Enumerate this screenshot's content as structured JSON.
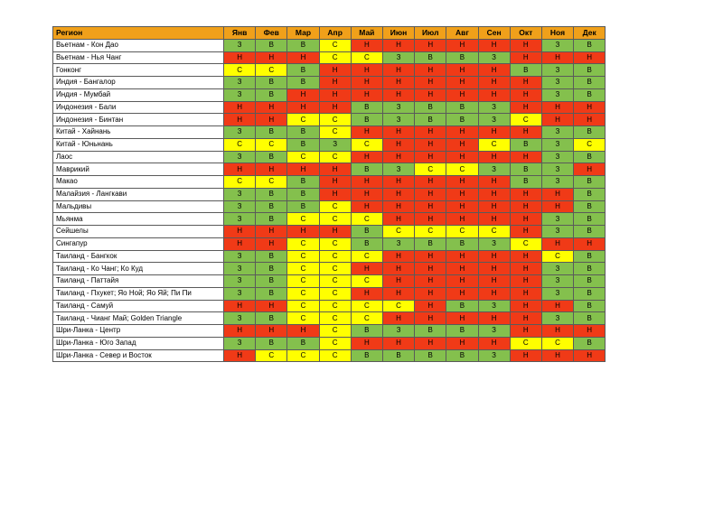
{
  "header": {
    "region": "Регион",
    "months": [
      "Янв",
      "Фев",
      "Мар",
      "Апр",
      "Май",
      "Июн",
      "Июл",
      "Авг",
      "Сен",
      "Окт",
      "Ноя",
      "Дек"
    ]
  },
  "colors": {
    "Н": "#f03a17",
    "З": "#84c04d",
    "В": "#84c04d",
    "С": "#ffff00",
    "header": "#f0a01a"
  },
  "rows": [
    {
      "region": "Вьетнам - Кон Дао",
      "values": [
        "З",
        "В",
        "В",
        "С",
        "Н",
        "Н",
        "Н",
        "Н",
        "Н",
        "Н",
        "З",
        "В"
      ]
    },
    {
      "region": "Вьетнам - Нья Чанг",
      "values": [
        "Н",
        "Н",
        "Н",
        "С",
        "С",
        "З",
        "В",
        "В",
        "З",
        "Н",
        "Н",
        "Н"
      ]
    },
    {
      "region": "Гонконг",
      "values": [
        "С",
        "С",
        "В",
        "Н",
        "Н",
        "Н",
        "Н",
        "Н",
        "Н",
        "В",
        "З",
        "В"
      ]
    },
    {
      "region": "Индия - Бангалор",
      "values": [
        "З",
        "В",
        "В",
        "Н",
        "Н",
        "Н",
        "Н",
        "Н",
        "Н",
        "Н",
        "З",
        "В"
      ]
    },
    {
      "region": "Индия - Мумбай",
      "values": [
        "З",
        "В",
        "Н",
        "Н",
        "Н",
        "Н",
        "Н",
        "Н",
        "Н",
        "Н",
        "З",
        "В"
      ]
    },
    {
      "region": "Индонезия - Бали",
      "values": [
        "Н",
        "Н",
        "Н",
        "Н",
        "В",
        "З",
        "В",
        "В",
        "З",
        "Н",
        "Н",
        "Н"
      ]
    },
    {
      "region": "Индонезия - Бинтан",
      "values": [
        "Н",
        "Н",
        "С",
        "С",
        "В",
        "З",
        "В",
        "В",
        "З",
        "С",
        "Н",
        "Н"
      ]
    },
    {
      "region": "Китай - Хайнань",
      "values": [
        "З",
        "В",
        "В",
        "С",
        "Н",
        "Н",
        "Н",
        "Н",
        "Н",
        "Н",
        "З",
        "В"
      ]
    },
    {
      "region": "Китай - Юньнань",
      "values": [
        "С",
        "С",
        "В",
        "З",
        "С",
        "Н",
        "Н",
        "Н",
        "С",
        "В",
        "З",
        "С"
      ]
    },
    {
      "region": "Лаос",
      "values": [
        "З",
        "В",
        "С",
        "С",
        "Н",
        "Н",
        "Н",
        "Н",
        "Н",
        "Н",
        "З",
        "В"
      ]
    },
    {
      "region": "Маврикий",
      "values": [
        "Н",
        "Н",
        "Н",
        "Н",
        "В",
        "З",
        "С",
        "С",
        "З",
        "В",
        "З",
        "Н"
      ]
    },
    {
      "region": "Макао",
      "values": [
        "С",
        "С",
        "В",
        "Н",
        "Н",
        "Н",
        "Н",
        "Н",
        "Н",
        "В",
        "З",
        "В"
      ]
    },
    {
      "region": "Малайзия - Лангкави",
      "values": [
        "З",
        "В",
        "В",
        "Н",
        "Н",
        "Н",
        "Н",
        "Н",
        "Н",
        "Н",
        "Н",
        "В"
      ]
    },
    {
      "region": "Мальдивы",
      "values": [
        "З",
        "В",
        "В",
        "С",
        "Н",
        "Н",
        "Н",
        "Н",
        "Н",
        "Н",
        "Н",
        "В"
      ]
    },
    {
      "region": "Мьянма",
      "values": [
        "З",
        "В",
        "С",
        "С",
        "С",
        "Н",
        "Н",
        "Н",
        "Н",
        "Н",
        "З",
        "В"
      ]
    },
    {
      "region": "Сейшелы",
      "values": [
        "Н",
        "Н",
        "Н",
        "Н",
        "В",
        "С",
        "С",
        "С",
        "С",
        "Н",
        "З",
        "В"
      ]
    },
    {
      "region": "Сингапур",
      "values": [
        "Н",
        "Н",
        "С",
        "С",
        "В",
        "З",
        "В",
        "В",
        "З",
        "С",
        "Н",
        "Н"
      ]
    },
    {
      "region": "Таиланд - Бангкок",
      "values": [
        "З",
        "В",
        "С",
        "С",
        "С",
        "Н",
        "Н",
        "Н",
        "Н",
        "Н",
        "С",
        "В"
      ]
    },
    {
      "region": "Таиланд - Ко Чанг; Ко Куд",
      "values": [
        "З",
        "В",
        "С",
        "С",
        "Н",
        "Н",
        "Н",
        "Н",
        "Н",
        "Н",
        "З",
        "В"
      ]
    },
    {
      "region": "Таиланд - Паттайя",
      "values": [
        "З",
        "В",
        "С",
        "С",
        "С",
        "Н",
        "Н",
        "Н",
        "Н",
        "Н",
        "З",
        "В"
      ]
    },
    {
      "region": "Таиланд - Пхукет; Яо Ной; Яо Яй; Пи Пи",
      "values": [
        "З",
        "В",
        "С",
        "С",
        "Н",
        "Н",
        "Н",
        "Н",
        "Н",
        "Н",
        "З",
        "В"
      ]
    },
    {
      "region": "Таиланд - Самуй",
      "values": [
        "Н",
        "Н",
        "С",
        "С",
        "С",
        "С",
        "Н",
        "В",
        "З",
        "Н",
        "Н",
        "В"
      ]
    },
    {
      "region": "Таиланд - Чианг Май; Golden Triangle",
      "values": [
        "З",
        "В",
        "С",
        "С",
        "С",
        "Н",
        "Н",
        "Н",
        "Н",
        "Н",
        "З",
        "В"
      ]
    },
    {
      "region": "Шри-Ланка - Центр",
      "values": [
        "Н",
        "Н",
        "Н",
        "С",
        "В",
        "З",
        "В",
        "В",
        "З",
        "Н",
        "Н",
        "Н"
      ]
    },
    {
      "region": "Шри-Ланка - Юго Запад",
      "values": [
        "З",
        "В",
        "В",
        "С",
        "Н",
        "Н",
        "Н",
        "Н",
        "Н",
        "С",
        "С",
        "В"
      ]
    },
    {
      "region": "Шри-Ланка - Север и Восток",
      "values": [
        "Н",
        "С",
        "С",
        "С",
        "В",
        "В",
        "В",
        "В",
        "З",
        "Н",
        "Н",
        "Н"
      ]
    }
  ]
}
